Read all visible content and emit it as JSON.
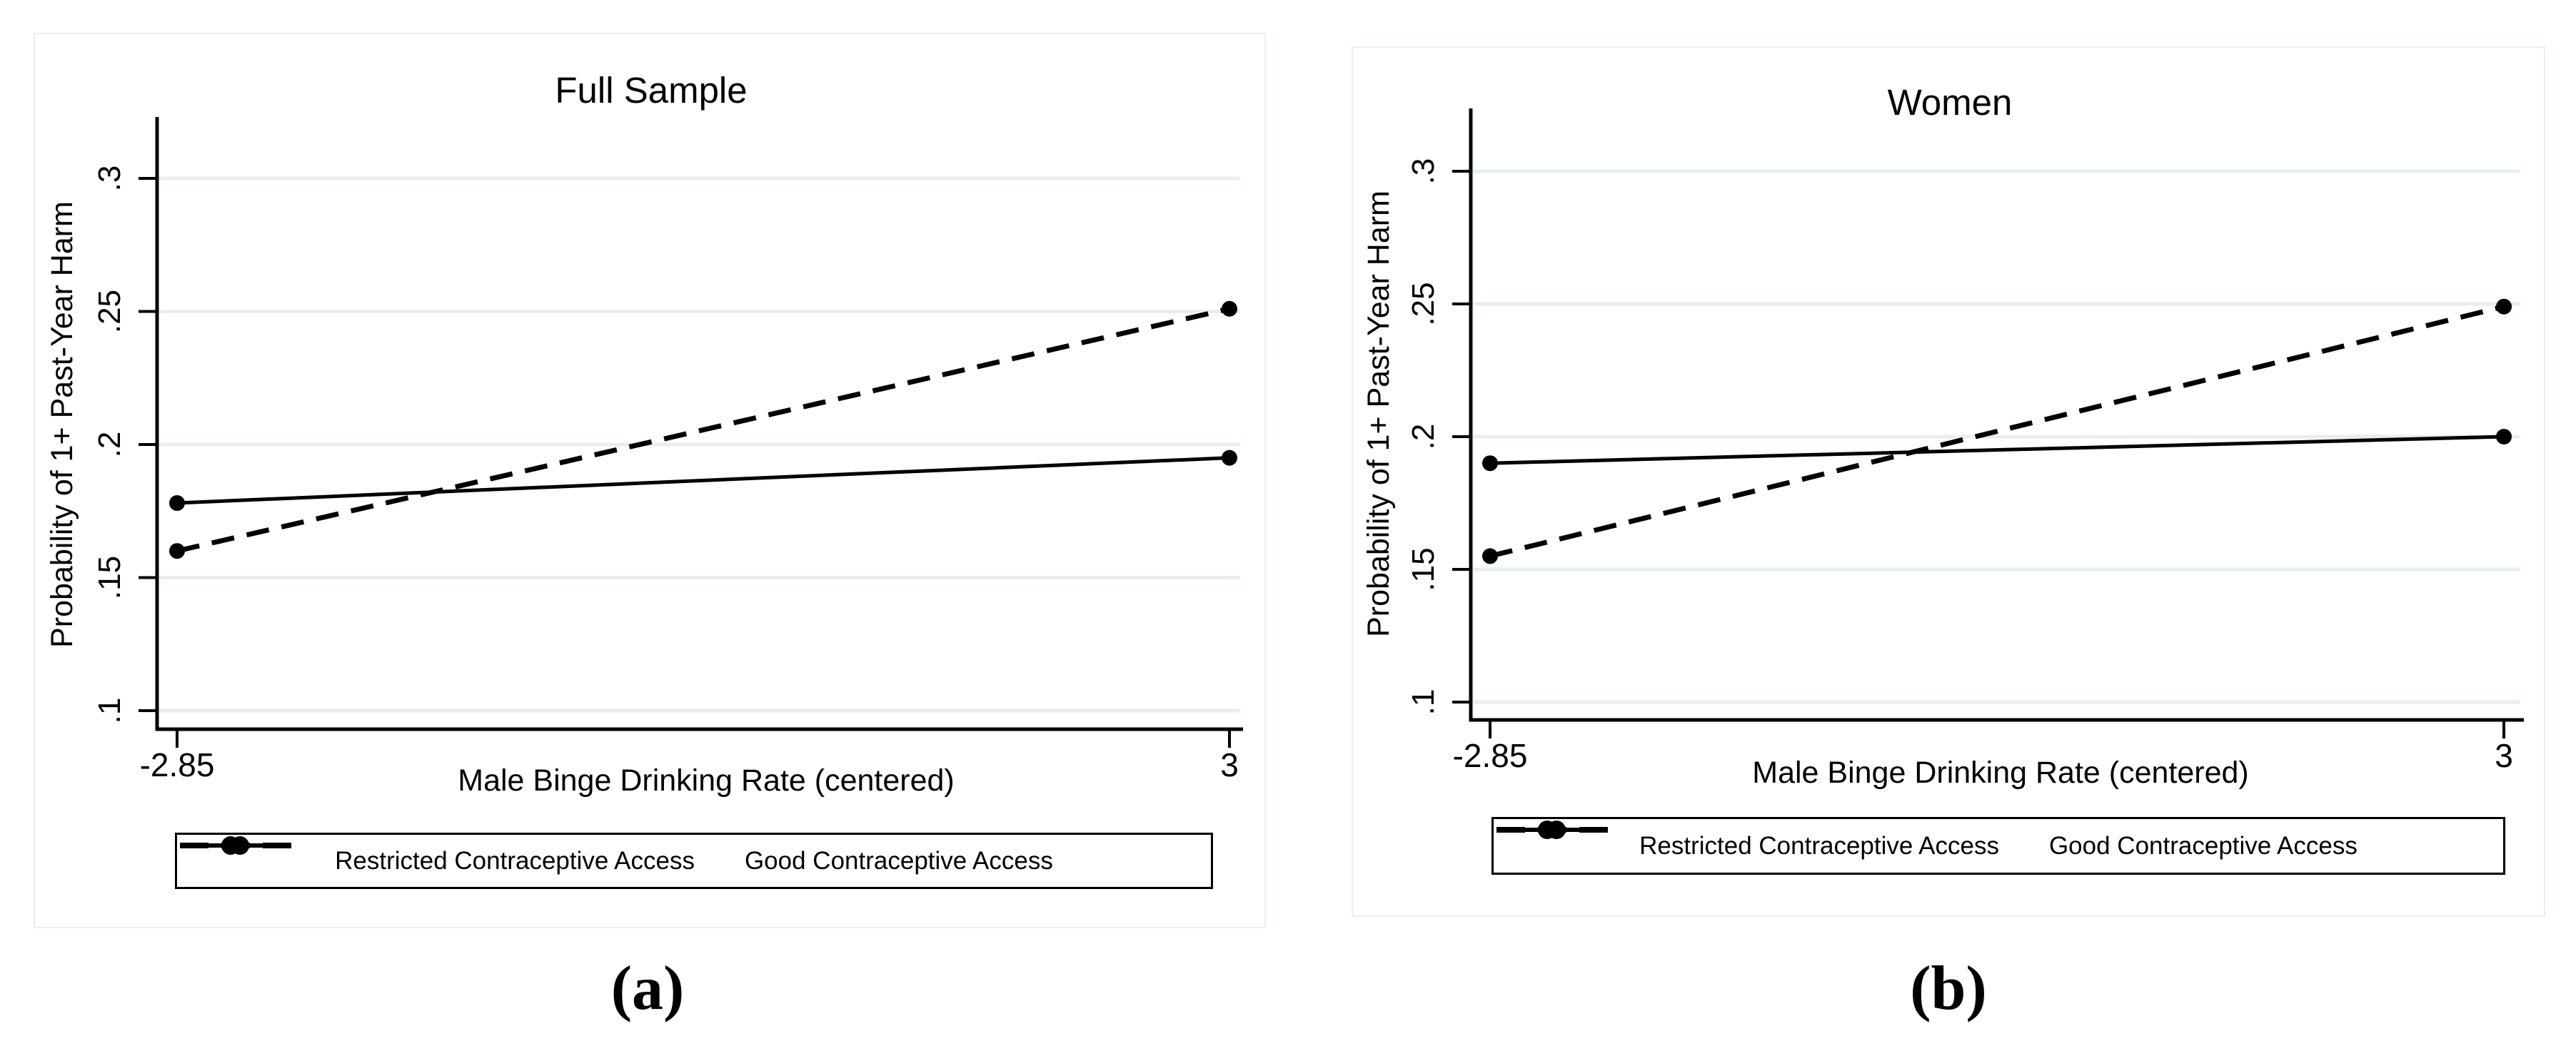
{
  "style": {
    "grid_color": "#e6eef0",
    "panel_border_color": "#e9eff1",
    "line_color": "#000000",
    "navy_title_color": "#243a5e"
  },
  "captions": {
    "a": "(a)",
    "b": "(b)"
  },
  "chart_data": [
    {
      "type": "line",
      "title": "Full Sample",
      "title_color": "#243a5e",
      "xlabel": "Male Binge Drinking Rate (centered)",
      "ylabel": "Probability of 1+ Past-Year Harm",
      "xlim": [
        -2.85,
        3
      ],
      "ylim": [
        0.1,
        0.3
      ],
      "grid": "horizontal",
      "legend_position": "bottom",
      "xticks": [
        {
          "label": "-2.85",
          "x": -2.85
        },
        {
          "label": "3",
          "x": 3
        }
      ],
      "yticks": [
        {
          "label": ".1",
          "v": 0.1
        },
        {
          "label": ".15",
          "v": 0.15
        },
        {
          "label": ".2",
          "v": 0.2
        },
        {
          "label": ".25",
          "v": 0.25
        },
        {
          "label": ".3",
          "v": 0.3
        }
      ],
      "series": [
        {
          "name": "Restricted Contraceptive Access",
          "style": "dashed",
          "marker": "circle",
          "x": [
            -2.85,
            3
          ],
          "y": [
            0.16,
            0.251
          ]
        },
        {
          "name": "Good Contraceptive Access",
          "style": "solid",
          "marker": "circle",
          "x": [
            -2.85,
            3
          ],
          "y": [
            0.178,
            0.195
          ]
        }
      ]
    },
    {
      "type": "line",
      "title": "Women",
      "title_color": "#000000",
      "xlabel": "Male Binge Drinking Rate (centered)",
      "ylabel": "Probability of 1+ Past-Year Harm",
      "xlim": [
        -2.85,
        3
      ],
      "ylim": [
        0.1,
        0.3
      ],
      "grid": "horizontal",
      "legend_position": "bottom",
      "xticks": [
        {
          "label": "-2.85",
          "x": -2.85
        },
        {
          "label": "3",
          "x": 3
        }
      ],
      "yticks": [
        {
          "label": ".1",
          "v": 0.1
        },
        {
          "label": ".15",
          "v": 0.15
        },
        {
          "label": ".2",
          "v": 0.2
        },
        {
          "label": ".25",
          "v": 0.25
        },
        {
          "label": ".3",
          "v": 0.3
        }
      ],
      "series": [
        {
          "name": "Restricted Contraceptive Access",
          "style": "dashed",
          "marker": "circle",
          "x": [
            -2.85,
            3
          ],
          "y": [
            0.155,
            0.249
          ]
        },
        {
          "name": "Good Contraceptive Access",
          "style": "solid",
          "marker": "circle",
          "x": [
            -2.85,
            3
          ],
          "y": [
            0.19,
            0.2
          ]
        }
      ]
    }
  ]
}
